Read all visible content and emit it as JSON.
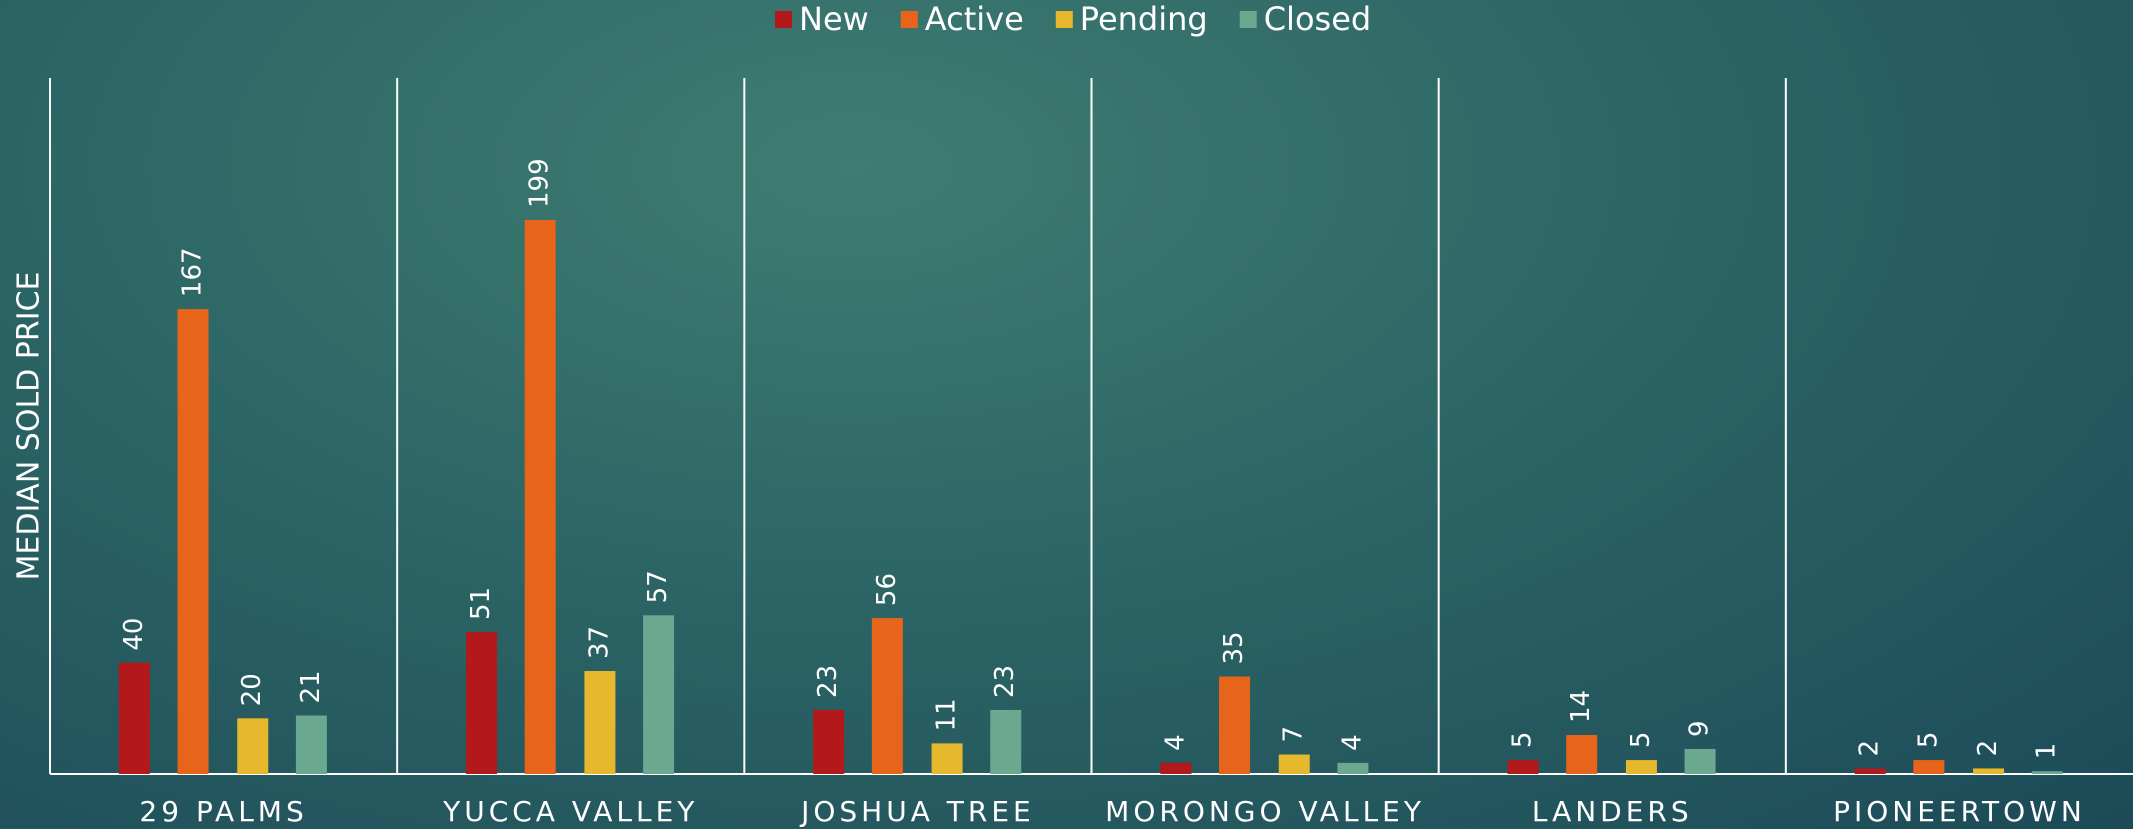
{
  "chart_data": {
    "type": "bar",
    "y_axis_label": "MEDIAN SOLD PRICE",
    "categories": [
      "29 PALMS",
      "YUCCA VALLEY",
      "JOSHUA TREE",
      "MORONGO VALLEY",
      "LANDERS",
      "PIONEERTOWN"
    ],
    "series": [
      {
        "name": "New",
        "color": "#b3191b",
        "values": [
          40,
          51,
          23,
          4,
          5,
          2
        ]
      },
      {
        "name": "Active",
        "color": "#e8641b",
        "values": [
          167,
          199,
          56,
          35,
          14,
          5
        ]
      },
      {
        "name": "Pending",
        "color": "#e6b82d",
        "values": [
          20,
          37,
          11,
          7,
          5,
          2
        ]
      },
      {
        "name": "Closed",
        "color": "#6aa98f",
        "values": [
          21,
          57,
          23,
          4,
          9,
          1
        ]
      }
    ],
    "ylim": [
      0,
      250
    ],
    "legend": "top"
  }
}
